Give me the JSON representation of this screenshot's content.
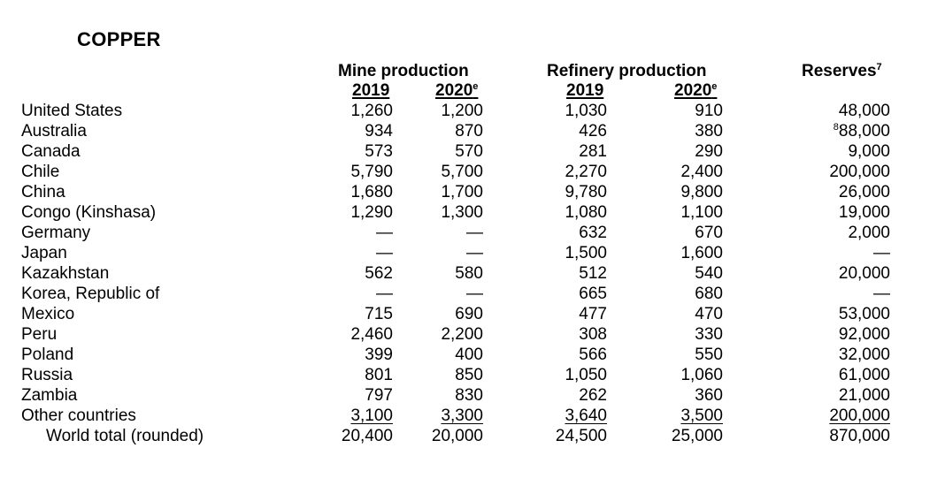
{
  "title": "COPPER",
  "headers": {
    "mine": "Mine production",
    "refinery": "Refinery production",
    "reserves": "Reserves",
    "reserves_sup": "7",
    "y2019": "2019",
    "y2020": "2020",
    "y2020_sup": "e"
  },
  "rows": [
    {
      "country": "United States",
      "mine2019": "1,260",
      "mine2020": "1,200",
      "ref2019": "1,030",
      "ref2020": "910",
      "reserves": "48,000"
    },
    {
      "country": "Australia",
      "mine2019": "934",
      "mine2020": "870",
      "ref2019": "426",
      "ref2020": "380",
      "reserves_sup": "8",
      "reserves": "88,000"
    },
    {
      "country": "Canada",
      "mine2019": "573",
      "mine2020": "570",
      "ref2019": "281",
      "ref2020": "290",
      "reserves": "9,000"
    },
    {
      "country": "Chile",
      "mine2019": "5,790",
      "mine2020": "5,700",
      "ref2019": "2,270",
      "ref2020": "2,400",
      "reserves": "200,000"
    },
    {
      "country": "China",
      "mine2019": "1,680",
      "mine2020": "1,700",
      "ref2019": "9,780",
      "ref2020": "9,800",
      "reserves": "26,000"
    },
    {
      "country": "Congo (Kinshasa)",
      "mine2019": "1,290",
      "mine2020": "1,300",
      "ref2019": "1,080",
      "ref2020": "1,100",
      "reserves": "19,000"
    },
    {
      "country": "Germany",
      "mine2019": "—",
      "mine2020": "—",
      "ref2019": "632",
      "ref2020": "670",
      "reserves": "2,000"
    },
    {
      "country": "Japan",
      "mine2019": "—",
      "mine2020": "—",
      "ref2019": "1,500",
      "ref2020": "1,600",
      "reserves": "—"
    },
    {
      "country": "Kazakhstan",
      "mine2019": "562",
      "mine2020": "580",
      "ref2019": "512",
      "ref2020": "540",
      "reserves": "20,000"
    },
    {
      "country": "Korea, Republic of",
      "mine2019": "—",
      "mine2020": "—",
      "ref2019": "665",
      "ref2020": "680",
      "reserves": "—"
    },
    {
      "country": "Mexico",
      "mine2019": "715",
      "mine2020": "690",
      "ref2019": "477",
      "ref2020": "470",
      "reserves": "53,000"
    },
    {
      "country": "Peru",
      "mine2019": "2,460",
      "mine2020": "2,200",
      "ref2019": "308",
      "ref2020": "330",
      "reserves": "92,000"
    },
    {
      "country": "Poland",
      "mine2019": "399",
      "mine2020": "400",
      "ref2019": "566",
      "ref2020": "550",
      "reserves": "32,000"
    },
    {
      "country": "Russia",
      "mine2019": "801",
      "mine2020": "850",
      "ref2019": "1,050",
      "ref2020": "1,060",
      "reserves": "61,000"
    },
    {
      "country": "Zambia",
      "mine2019": "797",
      "mine2020": "830",
      "ref2019": "262",
      "ref2020": "360",
      "reserves": "21,000"
    },
    {
      "country": "Other countries",
      "mine2019": "3,100",
      "mine2020": "3,300",
      "ref2019": "3,640",
      "ref2020": "3,500",
      "reserves": "200,000"
    }
  ],
  "total": {
    "country": "World total (rounded)",
    "mine2019": "20,400",
    "mine2020": "20,000",
    "ref2019": "24,500",
    "ref2020": "25,000",
    "reserves": "870,000"
  }
}
